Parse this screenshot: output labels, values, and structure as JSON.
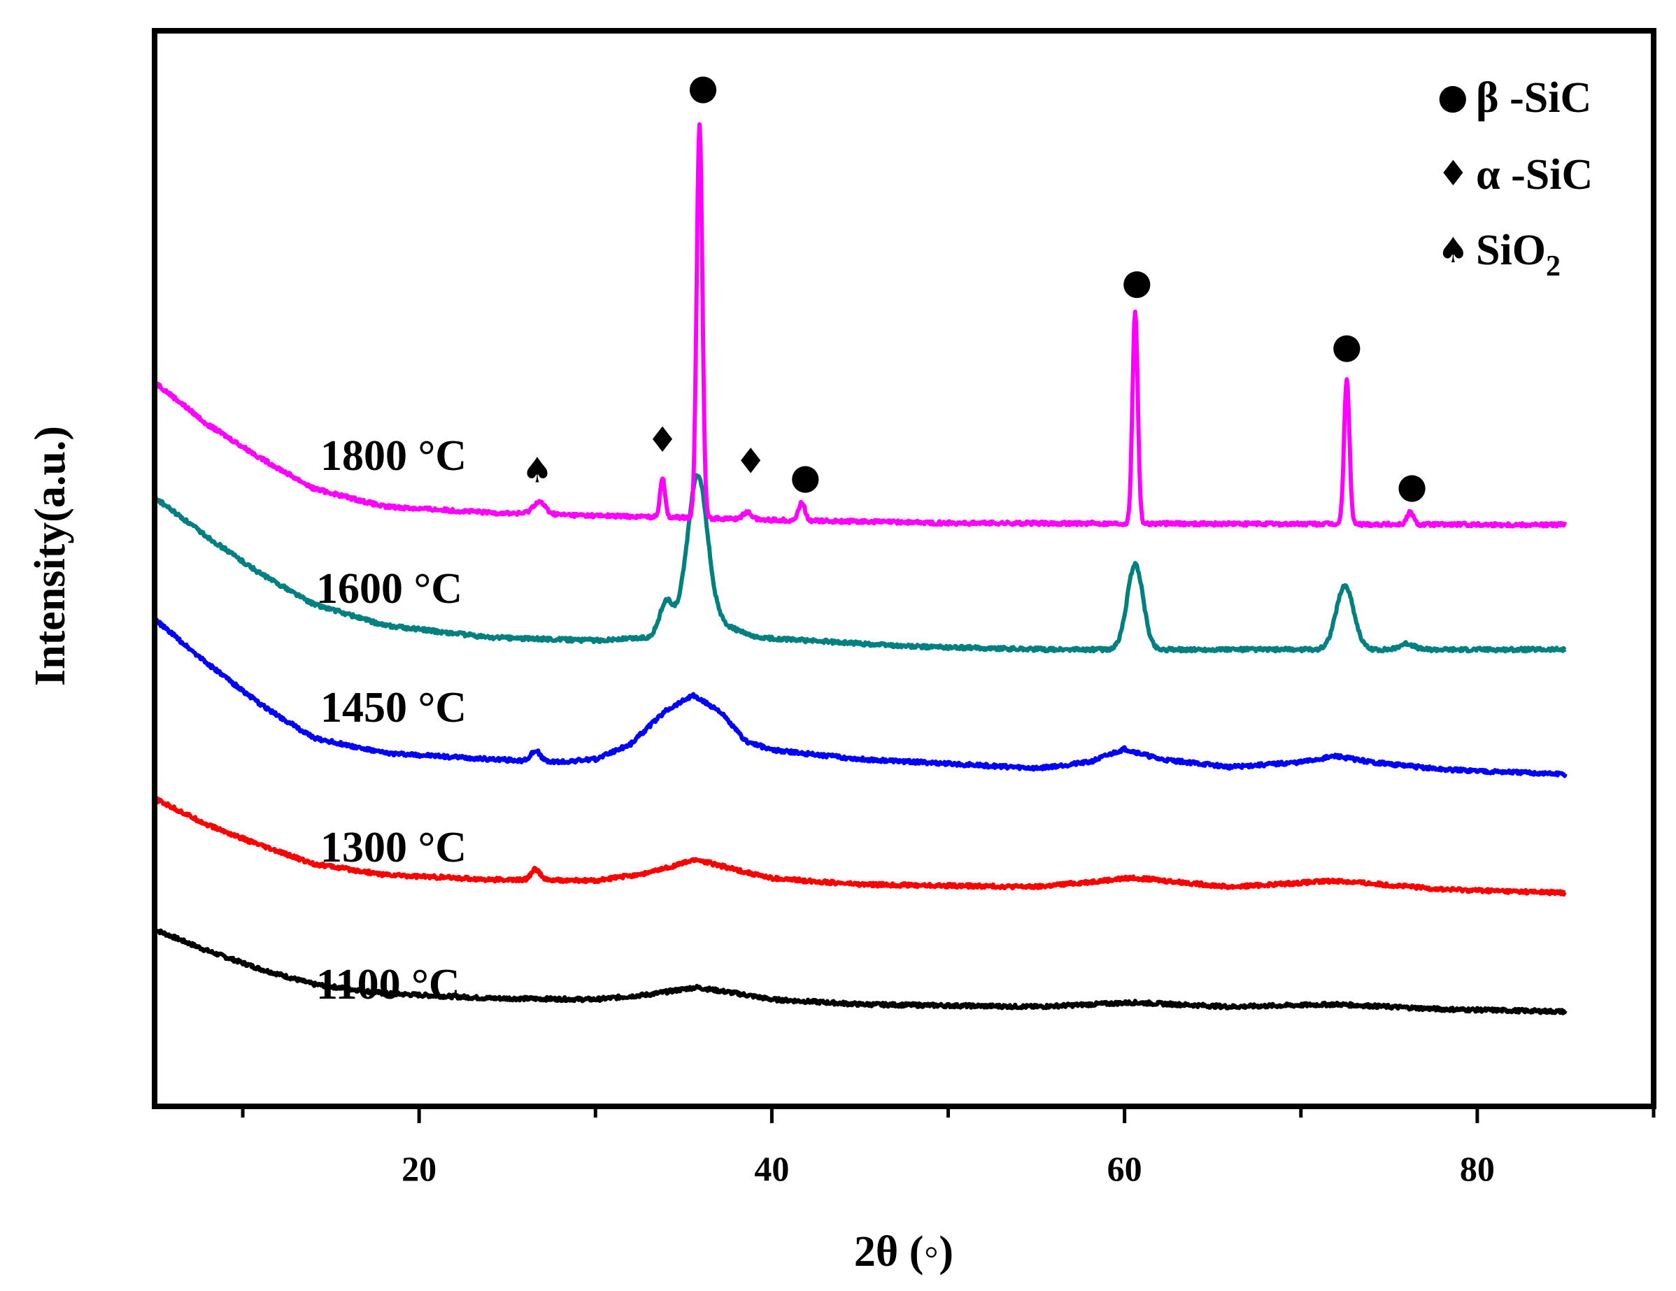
{
  "chart_data": {
    "type": "line",
    "title": "",
    "xlabel": "2θ (◦)",
    "ylabel": "Intensity(a.u.)",
    "xlim": [
      5,
      90
    ],
    "x_ticks": [
      20,
      40,
      60,
      80
    ],
    "y_ticks_shown": false,
    "grid": false,
    "legend": {
      "placement": "top-right",
      "entries": [
        {
          "symbol": "●",
          "label": "β -SiC"
        },
        {
          "symbol": "♦",
          "label": "α -SiC"
        },
        {
          "symbol": "♠",
          "label": "SiO",
          "subscript": "2"
        }
      ]
    },
    "series": [
      {
        "name": "1100 °C",
        "color": "#000000",
        "offset": 0.5,
        "knots": [
          [
            5,
            1.35
          ],
          [
            8,
            1.0
          ],
          [
            11,
            0.7
          ],
          [
            14,
            0.45
          ],
          [
            18,
            0.3
          ],
          [
            24,
            0.22
          ],
          [
            30,
            0.2
          ],
          [
            33,
            0.28
          ],
          [
            35.7,
            0.4
          ],
          [
            38,
            0.3
          ],
          [
            40,
            0.2
          ],
          [
            45,
            0.12
          ],
          [
            55,
            0.08
          ],
          [
            60.5,
            0.15
          ],
          [
            66,
            0.08
          ],
          [
            72,
            0.12
          ],
          [
            78,
            0.04
          ],
          [
            85,
            0.0
          ]
        ],
        "peaks": []
      },
      {
        "name": "1300 °C",
        "color": "#ff0000",
        "offset": 2.45,
        "knots": [
          [
            5,
            1.55
          ],
          [
            8,
            1.12
          ],
          [
            11,
            0.78
          ],
          [
            14,
            0.48
          ],
          [
            18,
            0.3
          ],
          [
            24,
            0.22
          ],
          [
            30,
            0.2
          ],
          [
            33,
            0.33
          ],
          [
            35.7,
            0.55
          ],
          [
            38,
            0.38
          ],
          [
            40,
            0.24
          ],
          [
            45,
            0.14
          ],
          [
            55,
            0.1
          ],
          [
            60.5,
            0.25
          ],
          [
            66,
            0.1
          ],
          [
            72,
            0.2
          ],
          [
            78,
            0.06
          ],
          [
            85,
            0.0
          ]
        ],
        "peaks": [
          {
            "pos": 26.6,
            "h": 0.18,
            "w": 0.25
          }
        ]
      },
      {
        "name": "1450 °C",
        "color": "#0000ff",
        "offset": 4.4,
        "knots": [
          [
            5,
            2.55
          ],
          [
            8,
            1.82
          ],
          [
            11,
            1.15
          ],
          [
            14,
            0.6
          ],
          [
            18,
            0.35
          ],
          [
            24,
            0.25
          ],
          [
            28,
            0.2
          ],
          [
            30,
            0.25
          ],
          [
            32,
            0.5
          ],
          [
            34,
            1.05
          ],
          [
            35.5,
            1.3
          ],
          [
            37,
            1.05
          ],
          [
            38.5,
            0.55
          ],
          [
            40,
            0.4
          ],
          [
            45,
            0.25
          ],
          [
            55,
            0.1
          ],
          [
            58,
            0.2
          ],
          [
            60,
            0.42
          ],
          [
            62,
            0.25
          ],
          [
            66,
            0.12
          ],
          [
            70,
            0.2
          ],
          [
            72,
            0.3
          ],
          [
            74,
            0.2
          ],
          [
            78,
            0.08
          ],
          [
            85,
            0.0
          ]
        ],
        "peaks": [
          {
            "pos": 26.6,
            "h": 0.18,
            "w": 0.25
          }
        ]
      },
      {
        "name": "1600 °C",
        "color": "#008080",
        "offset": 6.45,
        "knots": [
          [
            5,
            2.5
          ],
          [
            8,
            1.85
          ],
          [
            11,
            1.25
          ],
          [
            14,
            0.75
          ],
          [
            18,
            0.4
          ],
          [
            24,
            0.2
          ],
          [
            30,
            0.15
          ],
          [
            33,
            0.2
          ],
          [
            35,
            0.5
          ],
          [
            37,
            0.45
          ],
          [
            39,
            0.2
          ],
          [
            42,
            0.15
          ],
          [
            48,
            0.05
          ],
          [
            56,
            0.0
          ],
          [
            85,
            0.0
          ]
        ],
        "peaks": [
          {
            "pos": 34.0,
            "h": 0.45,
            "w": 0.35
          },
          {
            "pos": 35.8,
            "h": 2.4,
            "w": 0.55
          },
          {
            "pos": 60.6,
            "h": 1.4,
            "w": 0.45
          },
          {
            "pos": 72.5,
            "h": 1.05,
            "w": 0.5
          },
          {
            "pos": 76.0,
            "h": 0.1,
            "w": 0.4
          }
        ]
      },
      {
        "name": "1800 °C",
        "color": "#ff00ff",
        "offset": 8.5,
        "knots": [
          [
            5,
            2.35
          ],
          [
            8,
            1.65
          ],
          [
            11,
            1.1
          ],
          [
            14,
            0.6
          ],
          [
            18,
            0.3
          ],
          [
            24,
            0.2
          ],
          [
            30,
            0.15
          ],
          [
            35,
            0.12
          ],
          [
            40,
            0.08
          ],
          [
            50,
            0.03
          ],
          [
            85,
            0.0
          ]
        ],
        "peaks": [
          {
            "pos": 26.8,
            "h": 0.2,
            "w": 0.35
          },
          {
            "pos": 33.8,
            "h": 0.65,
            "w": 0.14
          },
          {
            "pos": 35.9,
            "h": 6.5,
            "w": 0.16
          },
          {
            "pos": 38.6,
            "h": 0.12,
            "w": 0.25
          },
          {
            "pos": 41.7,
            "h": 0.3,
            "w": 0.18
          },
          {
            "pos": 60.6,
            "h": 3.5,
            "w": 0.15
          },
          {
            "pos": 72.6,
            "h": 2.4,
            "w": 0.15
          },
          {
            "pos": 76.2,
            "h": 0.2,
            "w": 0.18
          }
        ]
      }
    ],
    "annotations": [
      {
        "symbol": "●",
        "series": "1800 °C",
        "x": 36.1,
        "y": 15.5
      },
      {
        "symbol": "●",
        "series": "1800 °C",
        "x": 60.7,
        "y": 12.3
      },
      {
        "symbol": "●",
        "series": "1800 °C",
        "x": 72.6,
        "y": 11.25
      },
      {
        "symbol": "●",
        "series": "1800 °C",
        "x": 41.9,
        "y": 9.1
      },
      {
        "symbol": "●",
        "series": "1800 °C",
        "x": 76.3,
        "y": 8.95
      },
      {
        "symbol": "♦",
        "series": "1800 °C",
        "x": 33.8,
        "y": 9.7
      },
      {
        "symbol": "♦",
        "series": "1800 °C",
        "x": 38.8,
        "y": 9.35
      },
      {
        "symbol": "♠",
        "series": "1800 °C",
        "x": 26.7,
        "y": 9.2
      }
    ]
  },
  "temperature_labels": [
    "1800 °C",
    "1600 °C",
    "1450 °C",
    "1300 °C",
    "1100 °C"
  ]
}
